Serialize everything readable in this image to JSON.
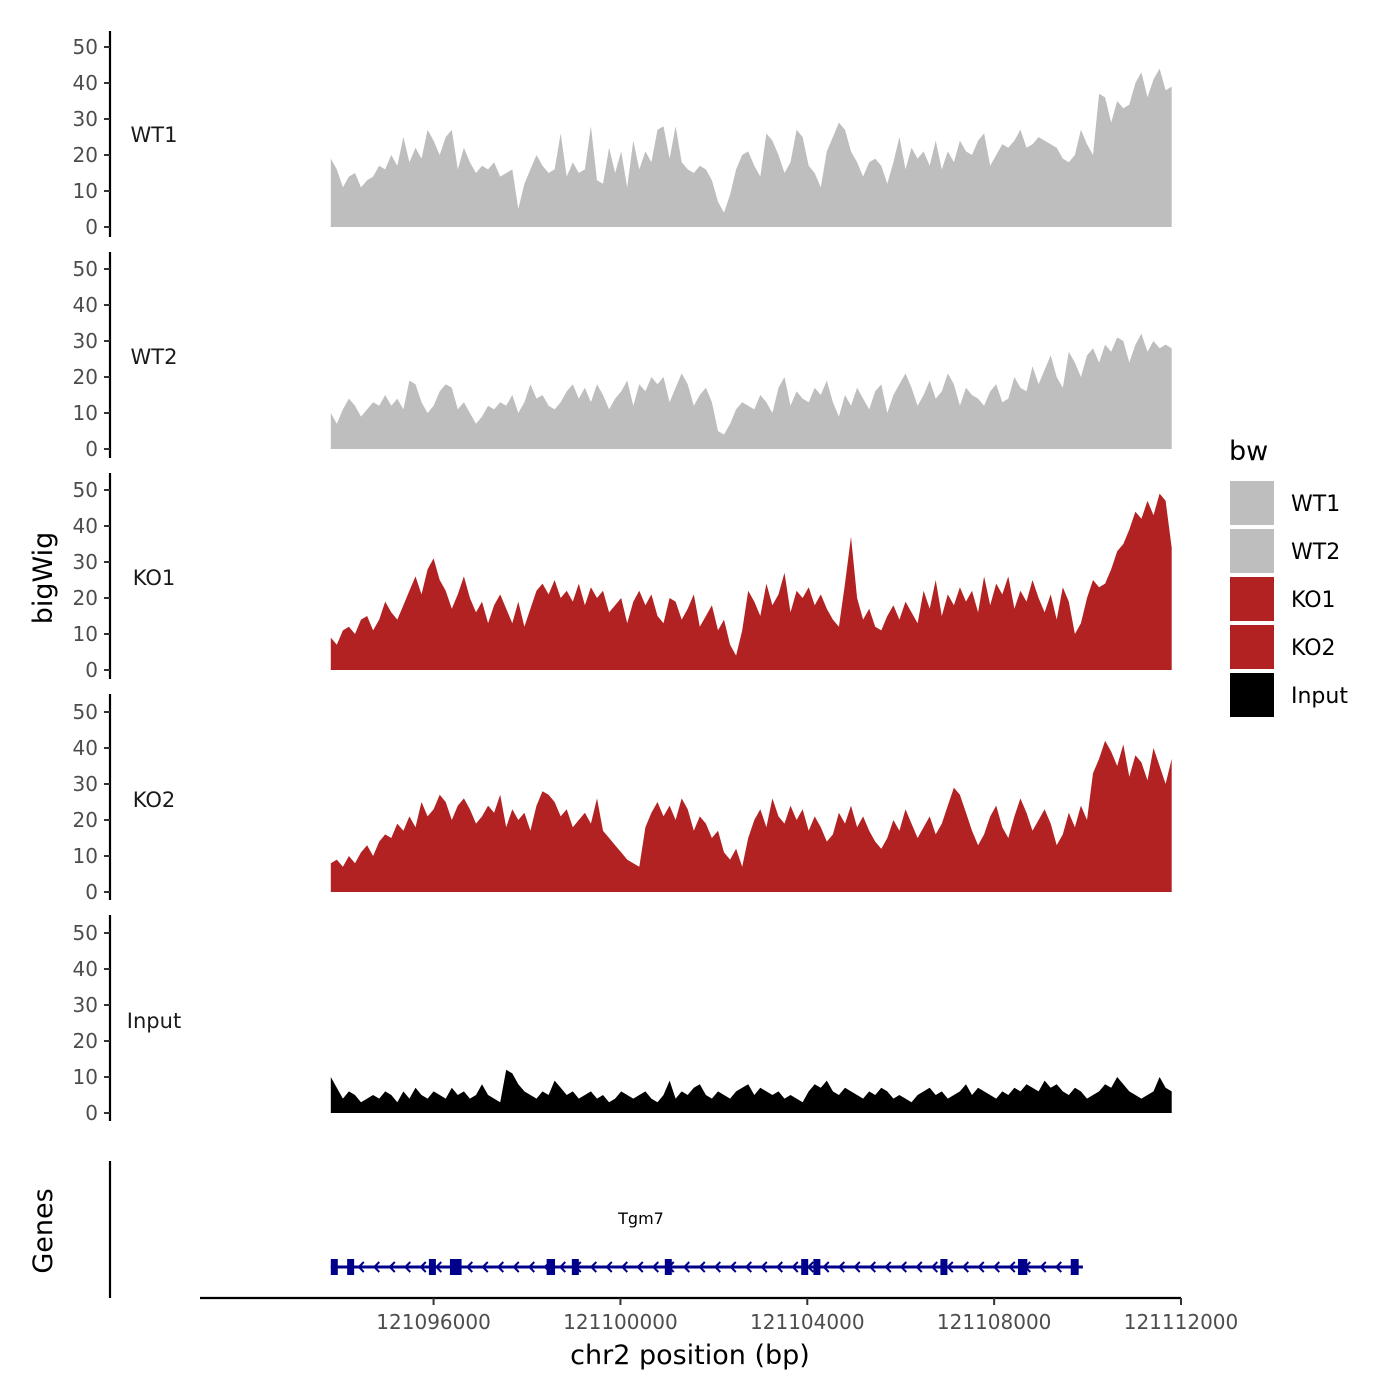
{
  "chart_data": {
    "type": "area",
    "chromosome": "chr2",
    "xlabel": "chr2 position (bp)",
    "ylabel": "bigWig",
    "gene_panel_label": "Genes",
    "xlim": [
      121091000,
      121112000
    ],
    "data_xrange": [
      121093800,
      121111800
    ],
    "x_ticks": [
      121096000,
      121100000,
      121104000,
      121108000,
      121112000
    ],
    "x_tick_labels": [
      "121096000",
      "121100000",
      "121104000",
      "121108000",
      "121112000"
    ],
    "ylim": [
      0,
      54
    ],
    "y_ticks": [
      0,
      10,
      20,
      30,
      40,
      50
    ],
    "y_tick_labels": [
      "0",
      "10",
      "20",
      "30",
      "40",
      "50"
    ],
    "grid": false,
    "legend": {
      "title": "bw",
      "position": "right",
      "entries": [
        {
          "label": "WT1",
          "color": "#BEBEBE"
        },
        {
          "label": "WT2",
          "color": "#BEBEBE"
        },
        {
          "label": "KO1",
          "color": "#B22222"
        },
        {
          "label": "KO2",
          "color": "#B22222"
        },
        {
          "label": "Input",
          "color": "#000000"
        }
      ]
    },
    "series": [
      {
        "name": "WT1",
        "color": "#BEBEBE",
        "values": [
          19,
          16,
          11,
          14,
          15,
          11,
          13,
          14,
          17,
          16,
          20,
          17,
          25,
          18,
          22,
          19,
          27,
          24,
          20,
          25,
          27,
          16,
          22,
          18,
          15,
          17,
          16,
          18,
          14,
          15,
          16,
          5,
          12,
          16,
          20,
          17,
          15,
          16,
          26,
          14,
          18,
          15,
          16,
          28,
          13,
          12,
          22,
          15,
          21,
          11,
          24,
          16,
          21,
          18,
          27,
          28,
          19,
          28,
          18,
          16,
          15,
          17,
          16,
          13,
          7,
          4,
          9,
          16,
          20,
          21,
          17,
          14,
          26,
          24,
          20,
          15,
          18,
          27,
          25,
          17,
          15,
          11,
          21,
          25,
          29,
          27,
          21,
          18,
          14,
          18,
          19,
          17,
          12,
          18,
          25,
          16,
          22,
          19,
          21,
          17,
          24,
          16,
          21,
          18,
          24,
          21,
          20,
          24,
          26,
          17,
          20,
          23,
          22,
          24,
          27,
          22,
          23,
          25,
          24,
          23,
          22,
          19,
          18,
          20,
          27,
          23,
          20,
          37,
          36,
          29,
          35,
          33,
          34,
          40,
          43,
          36,
          41,
          44,
          38,
          39
        ]
      },
      {
        "name": "WT2",
        "color": "#BEBEBE",
        "values": [
          10,
          7,
          11,
          14,
          12,
          9,
          11,
          13,
          12,
          15,
          12,
          14,
          11,
          19,
          18,
          13,
          10,
          12,
          16,
          18,
          17,
          11,
          13,
          10,
          7,
          9,
          12,
          11,
          13,
          12,
          15,
          10,
          13,
          18,
          14,
          15,
          12,
          11,
          13,
          16,
          18,
          14,
          17,
          13,
          18,
          15,
          11,
          14,
          16,
          19,
          12,
          18,
          16,
          20,
          18,
          20,
          13,
          17,
          21,
          18,
          12,
          15,
          17,
          13,
          5,
          4,
          7,
          11,
          13,
          12,
          11,
          15,
          13,
          10,
          17,
          20,
          12,
          16,
          14,
          13,
          17,
          15,
          19,
          13,
          9,
          15,
          12,
          17,
          14,
          11,
          16,
          18,
          10,
          15,
          18,
          21,
          17,
          12,
          15,
          19,
          14,
          16,
          21,
          18,
          12,
          17,
          15,
          14,
          12,
          16,
          18,
          13,
          14,
          20,
          17,
          16,
          23,
          18,
          22,
          26,
          20,
          17,
          27,
          24,
          20,
          26,
          28,
          24,
          29,
          27,
          31,
          30,
          24,
          29,
          32,
          27,
          30,
          28,
          29,
          28
        ]
      },
      {
        "name": "KO1",
        "color": "#B22222",
        "values": [
          9,
          7,
          11,
          12,
          10,
          14,
          15,
          11,
          14,
          19,
          16,
          14,
          18,
          22,
          26,
          21,
          28,
          31,
          25,
          22,
          17,
          21,
          26,
          20,
          16,
          19,
          13,
          18,
          21,
          17,
          13,
          19,
          12,
          17,
          22,
          24,
          21,
          25,
          20,
          22,
          19,
          24,
          18,
          23,
          20,
          22,
          16,
          18,
          20,
          13,
          19,
          22,
          18,
          21,
          15,
          13,
          20,
          19,
          14,
          17,
          21,
          12,
          15,
          18,
          11,
          14,
          7,
          4,
          11,
          22,
          19,
          15,
          24,
          18,
          21,
          27,
          16,
          22,
          20,
          23,
          18,
          21,
          17,
          14,
          12,
          24,
          37,
          20,
          14,
          17,
          12,
          11,
          15,
          18,
          14,
          19,
          16,
          13,
          22,
          17,
          25,
          15,
          21,
          18,
          23,
          19,
          22,
          16,
          26,
          18,
          24,
          21,
          26,
          17,
          22,
          19,
          25,
          20,
          16,
          21,
          14,
          23,
          19,
          10,
          13,
          20,
          25,
          23,
          24,
          28,
          33,
          35,
          39,
          44,
          42,
          47,
          43,
          49,
          47,
          34
        ]
      },
      {
        "name": "KO2",
        "color": "#B22222",
        "values": [
          8,
          9,
          7,
          10,
          8,
          11,
          13,
          10,
          14,
          16,
          15,
          19,
          17,
          21,
          18,
          25,
          21,
          23,
          27,
          25,
          20,
          24,
          26,
          23,
          19,
          21,
          24,
          22,
          27,
          18,
          23,
          20,
          22,
          17,
          24,
          28,
          27,
          25,
          21,
          23,
          18,
          20,
          22,
          19,
          26,
          17,
          15,
          13,
          11,
          9,
          8,
          7,
          18,
          22,
          25,
          21,
          24,
          20,
          26,
          23,
          17,
          21,
          19,
          15,
          17,
          11,
          9,
          12,
          7,
          15,
          20,
          23,
          18,
          26,
          21,
          19,
          24,
          20,
          23,
          17,
          21,
          18,
          14,
          16,
          22,
          19,
          24,
          18,
          21,
          17,
          14,
          12,
          15,
          20,
          17,
          23,
          19,
          15,
          18,
          21,
          16,
          19,
          24,
          29,
          27,
          22,
          17,
          13,
          16,
          21,
          24,
          18,
          15,
          21,
          26,
          22,
          17,
          20,
          23,
          19,
          13,
          16,
          22,
          18,
          24,
          20,
          33,
          37,
          42,
          39,
          35,
          41,
          32,
          38,
          36,
          31,
          40,
          35,
          30,
          37
        ]
      },
      {
        "name": "Input",
        "color": "#000000",
        "values": [
          10,
          7,
          4,
          6,
          5,
          3,
          4,
          5,
          4,
          6,
          5,
          3,
          6,
          4,
          7,
          5,
          4,
          6,
          5,
          4,
          7,
          5,
          6,
          4,
          5,
          8,
          5,
          4,
          3,
          12,
          11,
          8,
          6,
          5,
          4,
          6,
          5,
          9,
          7,
          5,
          6,
          4,
          5,
          6,
          4,
          5,
          3,
          4,
          6,
          5,
          4,
          5,
          6,
          4,
          3,
          5,
          9,
          4,
          6,
          5,
          7,
          8,
          5,
          4,
          6,
          5,
          4,
          6,
          7,
          8,
          5,
          7,
          6,
          5,
          6,
          4,
          5,
          4,
          3,
          6,
          8,
          7,
          9,
          6,
          5,
          7,
          6,
          5,
          4,
          6,
          5,
          7,
          6,
          4,
          5,
          4,
          3,
          5,
          6,
          7,
          5,
          6,
          4,
          5,
          6,
          8,
          5,
          7,
          6,
          5,
          4,
          6,
          5,
          7,
          6,
          8,
          7,
          6,
          9,
          7,
          8,
          6,
          5,
          7,
          6,
          4,
          5,
          6,
          8,
          7,
          10,
          8,
          6,
          5,
          4,
          5,
          6,
          10,
          7,
          6
        ]
      }
    ],
    "genes": [
      {
        "name": "Tgm7",
        "strand": "-",
        "start": 121093800,
        "end": 121109900,
        "exons": [
          [
            121093800,
            121093920
          ],
          [
            121094150,
            121094280
          ],
          [
            121095900,
            121096010
          ],
          [
            121096350,
            121096600
          ],
          [
            121098420,
            121098600
          ],
          [
            121098960,
            121099050
          ],
          [
            121100950,
            121101040
          ],
          [
            121103870,
            121103990
          ],
          [
            121104130,
            121104230
          ],
          [
            121106850,
            121106940
          ],
          [
            121108510,
            121108710
          ],
          [
            121109640,
            121109810
          ]
        ]
      }
    ],
    "gene_color": "#00008B"
  }
}
